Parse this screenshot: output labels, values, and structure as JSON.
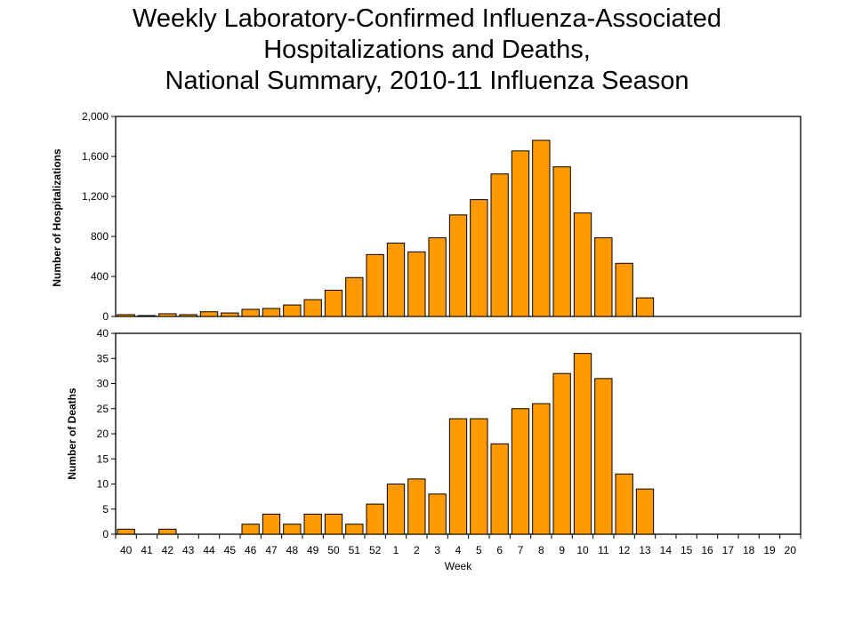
{
  "chart_data": [
    {
      "type": "bar",
      "title": "Weekly Laboratory-Confirmed Influenza-Associated Hospitalizations and Deaths, National Summary, 2010-11 Influenza Season",
      "title_lines": [
        "Weekly Laboratory-Confirmed Influenza-Associated",
        "Hospitalizations and Deaths,",
        "National Summary, 2010-11 Influenza Season"
      ],
      "ylabel": "Number of Hospitalizations",
      "ylim": [
        0,
        2000
      ],
      "yticks": [
        "0",
        "400",
        "800",
        "1,200",
        "1,600",
        "2,000"
      ],
      "ytick_values": [
        0,
        400,
        800,
        1200,
        1600,
        2000
      ],
      "categories": [
        "40",
        "41",
        "42",
        "43",
        "44",
        "45",
        "46",
        "47",
        "48",
        "49",
        "50",
        "51",
        "52",
        "1",
        "2",
        "3",
        "4",
        "5",
        "6",
        "7",
        "8",
        "9",
        "10",
        "11",
        "12",
        "13",
        "14",
        "15",
        "16",
        "17",
        "18",
        "19",
        "20"
      ],
      "values": [
        18,
        9,
        27,
        18,
        47,
        35,
        71,
        80,
        115,
        168,
        262,
        389,
        619,
        734,
        646,
        787,
        1015,
        1168,
        1425,
        1655,
        1761,
        1496,
        1035,
        787,
        531,
        186,
        null,
        null,
        null,
        null,
        null,
        null,
        null
      ],
      "bar_color": "#FF9900",
      "grid": false
    },
    {
      "type": "bar",
      "xlabel": "Week",
      "ylabel": "Number of Deaths",
      "ylim": [
        0,
        40
      ],
      "yticks": [
        "0",
        "5",
        "10",
        "15",
        "20",
        "25",
        "30",
        "35",
        "40"
      ],
      "ytick_values": [
        0,
        5,
        10,
        15,
        20,
        25,
        30,
        35,
        40
      ],
      "categories": [
        "40",
        "41",
        "42",
        "43",
        "44",
        "45",
        "46",
        "47",
        "48",
        "49",
        "50",
        "51",
        "52",
        "1",
        "2",
        "3",
        "4",
        "5",
        "6",
        "7",
        "8",
        "9",
        "10",
        "11",
        "12",
        "13",
        "14",
        "15",
        "16",
        "17",
        "18",
        "19",
        "20"
      ],
      "values": [
        1,
        0,
        1,
        0,
        0,
        0,
        2,
        4,
        2,
        4,
        4,
        2,
        6,
        10,
        11,
        8,
        23,
        23,
        18,
        25,
        26,
        32,
        36,
        31,
        12,
        9,
        null,
        null,
        null,
        null,
        null,
        null,
        null
      ],
      "bar_color": "#FF9900",
      "grid": false
    }
  ]
}
